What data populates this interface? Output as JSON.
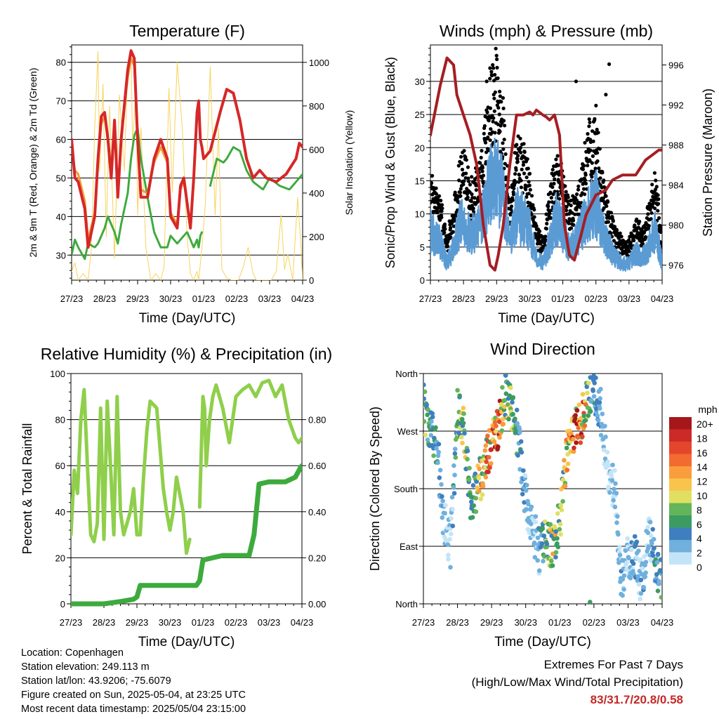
{
  "colors": {
    "temp_red": "#d62728",
    "temp_orange": "#f39c34",
    "dewpoint_green": "#3daa3d",
    "solar_yellow": "#f7d35b",
    "gust_black": "#000000",
    "wind_blue": "#5a9bd4",
    "pressure_maroon": "#a51e22",
    "rh_lightgreen": "#8fcf4b",
    "precip_green": "#3daa3d",
    "extreme_red": "#c62828"
  },
  "chart_data": [
    {
      "id": "temperature",
      "type": "line",
      "title": "Temperature (F)",
      "xlabel": "Time (Day/UTC)",
      "ylabel": "2m & 9m T (Red, Orange) & 2m Td (Green)",
      "ylabel_right": "Solar Insolation (Yellow)",
      "x_ticks": [
        "27/23",
        "28/23",
        "29/23",
        "30/23",
        "01/23",
        "02/23",
        "03/23",
        "04/23"
      ],
      "xlim": [
        0,
        7
      ],
      "ylim": [
        23.5,
        84.5
      ],
      "y_ticks": [
        30,
        40,
        50,
        60,
        70,
        80
      ],
      "y2lim": [
        0,
        1080
      ],
      "y2_ticks": [
        0,
        200,
        400,
        600,
        800,
        1000
      ],
      "grid": "horizontal",
      "series": [
        {
          "name": "2m T",
          "axis": "left",
          "color": "#d62728",
          "width": 4,
          "x": [
            0,
            0.1,
            0.2,
            0.4,
            0.5,
            0.7,
            0.8,
            0.9,
            1.0,
            1.1,
            1.2,
            1.3,
            1.4,
            1.5,
            1.6,
            1.7,
            1.8,
            1.9,
            2.0,
            2.1,
            2.3,
            2.5,
            2.7,
            2.9,
            3.0,
            3.2,
            3.3,
            3.4,
            3.6,
            3.7,
            3.8,
            3.85,
            3.9,
            3.95,
            4.0,
            4.2,
            4.5,
            4.7,
            4.9,
            5.1,
            5.3,
            5.5,
            5.7,
            5.9,
            6.2,
            6.5,
            6.8,
            6.9,
            7.0
          ],
          "y": [
            60,
            50,
            49,
            42,
            32,
            40,
            55,
            66,
            67,
            60,
            50,
            65,
            45,
            60,
            69,
            78,
            83,
            81,
            60,
            45,
            45,
            55,
            60,
            55,
            40,
            37,
            48,
            50,
            37,
            50,
            67,
            70,
            60,
            58,
            55,
            57,
            67,
            73,
            72,
            65,
            55,
            50,
            52,
            50,
            49,
            51,
            55,
            59,
            58
          ]
        },
        {
          "name": "9m T",
          "axis": "left",
          "color": "#f39c34",
          "width": 3,
          "x": [
            0,
            0.1,
            0.2,
            0.4,
            0.5,
            0.7,
            0.8,
            0.9,
            1.0,
            1.1,
            1.2,
            1.3,
            1.4,
            1.5,
            1.6,
            1.7,
            1.8,
            1.9,
            2.0,
            2.1,
            2.3,
            2.5,
            2.7,
            2.9,
            3.0,
            3.2,
            3.3,
            3.4,
            3.6,
            3.7
          ],
          "y": [
            58,
            52,
            51,
            44,
            34,
            41,
            54,
            64,
            66,
            61,
            52,
            63,
            47,
            59,
            68,
            76,
            81,
            79,
            59,
            47,
            46,
            54,
            58,
            54,
            41,
            38,
            47,
            49,
            38,
            49
          ]
        },
        {
          "name": "2m Td",
          "axis": "left",
          "color": "#3daa3d",
          "width": 3,
          "dotted": true,
          "x": [
            0,
            0.1,
            0.2,
            0.4,
            0.5,
            0.7,
            0.8,
            1.0,
            1.1,
            1.3,
            1.4,
            1.5,
            1.7,
            1.8,
            1.9,
            2.0,
            2.1,
            2.3,
            2.5,
            2.7,
            2.9,
            3.0,
            3.2,
            3.4,
            3.5,
            3.6,
            3.7,
            3.8,
            3.85,
            3.9,
            3.95,
            4.0,
            4.2,
            4.4,
            4.6,
            4.7,
            4.9,
            5.1,
            5.3,
            5.5,
            5.8,
            6.0,
            6.3,
            6.6,
            6.9,
            7.0
          ],
          "y": [
            30,
            34,
            32,
            29,
            33,
            32,
            33,
            37,
            40,
            36,
            33,
            38,
            46,
            55,
            61,
            63,
            55,
            45,
            36,
            32,
            32,
            35,
            33,
            35,
            36,
            34,
            32,
            34,
            32,
            35,
            36,
            null,
            48,
            55,
            54,
            55,
            58,
            57,
            52,
            49,
            47,
            50,
            48,
            47,
            50,
            51
          ]
        },
        {
          "name": "Solar Insolation",
          "axis": "right",
          "color": "#f7d35b",
          "width": 1,
          "thin": true,
          "x": [
            0,
            0.1,
            0.2,
            0.35,
            0.5,
            0.6,
            0.7,
            0.8,
            0.85,
            0.95,
            1.05,
            1.15,
            1.3,
            1.45,
            1.6,
            1.7,
            1.8,
            1.85,
            1.95,
            2.0,
            2.1,
            2.25,
            2.4,
            2.55,
            2.7,
            2.8,
            2.95,
            3.05,
            3.2,
            3.35,
            3.5,
            3.6,
            3.7,
            3.8,
            3.85,
            3.95,
            4.05,
            4.2,
            4.35,
            4.45,
            4.55,
            4.7,
            4.85,
            4.95,
            5.05,
            5.2,
            5.35,
            5.5,
            5.6,
            5.7,
            5.85,
            5.95,
            6.05,
            6.2,
            6.35,
            6.45,
            6.55,
            6.7,
            6.85,
            6.95,
            7.0
          ],
          "y": [
            40,
            80,
            0,
            30,
            0,
            150,
            700,
            1050,
            500,
            900,
            200,
            800,
            100,
            850,
            500,
            1000,
            1050,
            600,
            900,
            300,
            700,
            150,
            0,
            30,
            0,
            60,
            880,
            400,
            1000,
            700,
            200,
            30,
            0,
            40,
            0,
            150,
            350,
            980,
            300,
            700,
            50,
            10,
            0,
            0,
            0,
            60,
            150,
            30,
            0,
            0,
            0,
            0,
            0,
            40,
            300,
            50,
            120,
            0,
            380,
            150,
            0
          ]
        }
      ]
    },
    {
      "id": "winds",
      "type": "scatter",
      "title": "Winds (mph) & Pressure (mb)",
      "xlabel": "Time (Day/UTC)",
      "ylabel": "Sonic/Prop Wind & Gust (Blue, Black)",
      "ylabel_right": "Station Pressure (Maroon)",
      "x_ticks": [
        "27/23",
        "28/23",
        "29/23",
        "30/23",
        "01/23",
        "02/23",
        "03/23",
        "04/23"
      ],
      "xlim": [
        0,
        7
      ],
      "ylim": [
        0,
        35.5
      ],
      "y_ticks": [
        0,
        5,
        10,
        15,
        20,
        25,
        30
      ],
      "y2lim": [
        974.5,
        998
      ],
      "y2_ticks": [
        976,
        980,
        984,
        988,
        992,
        996
      ],
      "grid": "horizontal",
      "wind_profile": {
        "x": [
          0,
          0.3,
          0.5,
          0.7,
          0.9,
          1.0,
          1.2,
          1.4,
          1.6,
          1.8,
          2.0,
          2.2,
          2.4,
          2.6,
          2.8,
          3.0,
          3.2,
          3.4,
          3.6,
          3.8,
          4.0,
          4.2,
          4.4,
          4.6,
          4.8,
          5.0,
          5.2,
          5.4,
          5.6,
          5.8,
          6.0,
          6.2,
          6.4,
          6.6,
          6.8,
          7.0
        ],
        "y": [
          9,
          7,
          3,
          6,
          10,
          11,
          8,
          9,
          12,
          17,
          19,
          15,
          6,
          12,
          11,
          9,
          4,
          3,
          7,
          11,
          9,
          6,
          7,
          10,
          13,
          14,
          9,
          6,
          4,
          3,
          3,
          5,
          4,
          6,
          9,
          3
        ]
      },
      "gust_peaks": [
        [
          1.7,
          30
        ],
        [
          1.8,
          32
        ],
        [
          1.9,
          32
        ],
        [
          2.1,
          27
        ],
        [
          4.4,
          30
        ],
        [
          5.4,
          32.6
        ],
        [
          5.3,
          28
        ],
        [
          1.85,
          31
        ]
      ],
      "series": [
        {
          "name": "Station Pressure",
          "axis": "right",
          "color": "#a51e22",
          "width": 4,
          "x": [
            0,
            0.3,
            0.5,
            0.7,
            0.8,
            1.0,
            1.2,
            1.4,
            1.6,
            1.8,
            1.95,
            2.05,
            2.2,
            2.4,
            2.6,
            2.8,
            3.0,
            3.1,
            3.2,
            3.4,
            3.5,
            3.6,
            3.75,
            3.9,
            4.05,
            4.2,
            4.35,
            4.55,
            4.7,
            4.85,
            5.0,
            5.3,
            5.5,
            5.8,
            6.0,
            6.2,
            6.5,
            6.7,
            6.9,
            7.0
          ],
          "y": [
            989,
            994,
            996.7,
            996,
            993,
            991,
            989,
            986,
            980,
            976,
            975.5,
            977,
            980,
            986,
            991,
            991,
            991.3,
            991,
            991.5,
            991,
            990.8,
            990.5,
            991,
            989,
            980,
            977,
            976.5,
            979,
            981,
            982,
            983,
            983.5,
            984.5,
            985,
            985,
            985,
            986.5,
            987,
            987.5,
            987.5
          ]
        }
      ]
    },
    {
      "id": "humidity",
      "type": "line",
      "title": "Relative Humidity (%) & Precipitation (in)",
      "xlabel": "Time (Day/UTC)",
      "ylabel": "Percent & Total Rainfall",
      "x_ticks": [
        "27/23",
        "28/23",
        "29/23",
        "30/23",
        "01/23",
        "02/23",
        "03/23",
        "04/23"
      ],
      "xlim": [
        0,
        7
      ],
      "ylim": [
        0,
        100
      ],
      "y_ticks": [
        0,
        20,
        40,
        60,
        80,
        100
      ],
      "y2lim": [
        0,
        1.0
      ],
      "y2_ticks": [
        0.0,
        0.2,
        0.4,
        0.6,
        0.8
      ],
      "y2_tick_labels": [
        "0.00",
        "0.20",
        "0.40",
        "0.60",
        "0.80"
      ],
      "grid": "horizontal",
      "series": [
        {
          "name": "Relative Humidity",
          "axis": "left",
          "color": "#8fcf4b",
          "width": 5,
          "x": [
            0,
            0.1,
            0.2,
            0.3,
            0.4,
            0.5,
            0.6,
            0.7,
            0.8,
            0.9,
            1.0,
            1.1,
            1.2,
            1.3,
            1.4,
            1.5,
            1.6,
            1.7,
            1.8,
            1.9,
            2.0,
            2.1,
            2.2,
            2.3,
            2.4,
            2.6,
            2.8,
            2.9,
            3.0,
            3.1,
            3.2,
            3.4,
            3.5,
            3.6,
            3.7,
            3.75,
            3.8,
            3.9,
            4.0,
            4.05,
            4.1,
            4.2,
            4.3,
            4.4,
            4.6,
            4.8,
            5.0,
            5.2,
            5.4,
            5.6,
            5.8,
            6.0,
            6.2,
            6.4,
            6.6,
            6.8,
            6.9,
            7.0
          ],
          "y": [
            30,
            58,
            48,
            80,
            93,
            60,
            30,
            27,
            35,
            85,
            28,
            88,
            60,
            30,
            90,
            40,
            30,
            35,
            40,
            50,
            30,
            30,
            55,
            75,
            88,
            85,
            50,
            40,
            32,
            40,
            55,
            40,
            22,
            28,
            null,
            null,
            null,
            42,
            90,
            85,
            60,
            80,
            90,
            95,
            85,
            70,
            90,
            93,
            95,
            90,
            96,
            97,
            90,
            95,
            80,
            72,
            70,
            72
          ]
        },
        {
          "name": "Total Precipitation",
          "axis": "right",
          "color": "#3daa3d",
          "width": 7,
          "x": [
            0,
            0.5,
            1.0,
            1.5,
            1.9,
            2.0,
            2.1,
            2.5,
            3.0,
            3.5,
            3.8,
            3.9,
            4.0,
            4.3,
            4.6,
            5.0,
            5.4,
            5.55,
            5.7,
            6.0,
            6.5,
            6.8,
            6.95,
            7.0
          ],
          "y": [
            0.0,
            0.0,
            0.0,
            0.01,
            0.02,
            0.03,
            0.08,
            0.08,
            0.08,
            0.08,
            0.08,
            0.1,
            0.19,
            0.2,
            0.21,
            0.21,
            0.21,
            0.3,
            0.52,
            0.53,
            0.53,
            0.55,
            0.59,
            0.6
          ]
        }
      ]
    },
    {
      "id": "wind_direction",
      "type": "scatter",
      "title": "Wind Direction",
      "xlabel": "Time (Day/UTC)",
      "ylabel": "Direction (Colored By Speed)",
      "x_ticks": [
        "27/23",
        "28/23",
        "29/23",
        "30/23",
        "01/23",
        "02/23",
        "03/23",
        "04/23"
      ],
      "xlim": [
        0,
        7
      ],
      "ylim": [
        0,
        360
      ],
      "y_ticks": [
        0,
        90,
        180,
        270,
        360
      ],
      "y_tick_labels": [
        "North",
        "East",
        "South",
        "West",
        "North"
      ],
      "grid": "horizontal",
      "direction_profile": {
        "x": [
          0,
          0.2,
          0.4,
          0.6,
          0.8,
          1.0,
          1.2,
          1.4,
          1.6,
          1.8,
          2.0,
          2.2,
          2.4,
          2.6,
          2.8,
          3.0,
          3.2,
          3.4,
          3.6,
          3.8,
          4.0,
          4.2,
          4.4,
          4.6,
          4.8,
          5.0,
          5.2,
          5.4,
          5.6,
          5.8,
          6.0,
          6.2,
          6.4,
          6.6,
          6.8,
          7.0
        ],
        "dir": [
          310,
          270,
          250,
          130,
          90,
          300,
          270,
          150,
          185,
          215,
          250,
          275,
          330,
          300,
          255,
          160,
          120,
          80,
          100,
          90,
          130,
          240,
          270,
          285,
          320,
          340,
          300,
          210,
          180,
          40,
          70,
          80,
          30,
          120,
          60,
          30
        ],
        "speed": [
          8,
          6,
          5,
          3,
          2,
          8,
          9,
          6,
          10,
          14,
          15,
          18,
          9,
          8,
          5,
          3,
          2,
          3,
          8,
          11,
          8,
          13,
          16,
          20,
          9,
          5,
          3,
          2,
          2,
          3,
          2,
          4,
          3,
          2,
          5,
          6
        ]
      },
      "legend": {
        "title": "mph",
        "labels": [
          "20+",
          "18",
          "16",
          "14",
          "12",
          "10",
          "8",
          "6",
          "4",
          "2",
          "0"
        ],
        "colors": [
          "#a6171c",
          "#cc2a27",
          "#e4462c",
          "#f26b30",
          "#f99d3d",
          "#f9c44c",
          "#dfe062",
          "#64b45a",
          "#3b9c61",
          "#3f7fbf",
          "#6fb0dd",
          "#c4e4f7"
        ]
      }
    }
  ],
  "footer": {
    "location": "Location: Copenhagen",
    "elevation": "Station elevation: 249.113 m",
    "latlon": "Station lat/lon: 43.9206; -75.6079",
    "created": "Figure created on Sun, 2025-05-04, at 23:25 UTC",
    "recent": "Most recent data timestamp: 2025/05/04 23:15:00"
  },
  "extremes": {
    "title": "Extremes For Past 7 Days",
    "subtitle": "(High/Low/Max Wind/Total Precipitation)",
    "values": "83/31.7/20.8/0.58"
  }
}
